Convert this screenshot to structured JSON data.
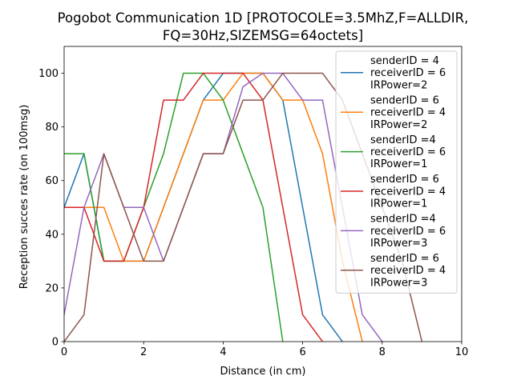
{
  "chart_data": {
    "type": "line",
    "title_lines": [
      "Pogobot Communication 1D [PROTOCOLE=3.5MhZ,F=ALLDIR,",
      "FQ=30Hz,SIZEMSG=64octets]"
    ],
    "xlabel": "Distance (in cm)",
    "ylabel": "Reception succes rate (on 100msg)",
    "xlim": [
      0,
      10
    ],
    "ylim": [
      0,
      110
    ],
    "xticks": [
      0,
      2,
      4,
      6,
      8,
      10
    ],
    "yticks": [
      0,
      20,
      40,
      60,
      80,
      100
    ],
    "legend_position": "top-right",
    "grid": false,
    "series": [
      {
        "name_lines": [
          "senderID = 4",
          "receiverID = 6",
          "IRPower=2"
        ],
        "color": "#1f77b4",
        "x": [
          0,
          0.5,
          1,
          1.5,
          2,
          2.5,
          3,
          3.5,
          4,
          4.5,
          5,
          5.5,
          6,
          6.5,
          7
        ],
        "y": [
          50,
          70,
          30,
          30,
          30,
          50,
          70,
          90,
          100,
          100,
          100,
          90,
          50,
          10,
          0
        ]
      },
      {
        "name_lines": [
          "senderID = 6",
          "receiverID = 4",
          "IRPower=2"
        ],
        "color": "#ff7f0e",
        "x": [
          0,
          0.5,
          1,
          1.5,
          2,
          2.5,
          3,
          3.5,
          4,
          4.5,
          5,
          5.5,
          6,
          6.5,
          7,
          7.5
        ],
        "y": [
          50,
          50,
          50,
          30,
          30,
          50,
          70,
          90,
          90,
          100,
          100,
          90,
          90,
          70,
          30,
          0
        ]
      },
      {
        "name_lines": [
          "senderID =4",
          "receiverID = 6",
          "IRPower=1"
        ],
        "color": "#2ca02c",
        "x": [
          0,
          0.5,
          1,
          1.5,
          2,
          2.5,
          3,
          3.5,
          4,
          4.5,
          5,
          5.5
        ],
        "y": [
          70,
          70,
          30,
          30,
          50,
          70,
          100,
          100,
          90,
          70,
          50,
          0
        ]
      },
      {
        "name_lines": [
          "senderID = 6",
          "receiverID = 4",
          "IRPower=1"
        ],
        "color": "#d62728",
        "x": [
          0,
          0.5,
          1,
          1.5,
          2,
          2.5,
          3,
          3.5,
          4,
          4.5,
          5,
          5.5,
          6,
          6.5
        ],
        "y": [
          50,
          50,
          30,
          30,
          50,
          90,
          90,
          100,
          100,
          100,
          90,
          50,
          10,
          0
        ]
      },
      {
        "name_lines": [
          "senderID =4",
          "receiverID = 6",
          "IRPower=3"
        ],
        "color": "#9467bd",
        "x": [
          0,
          0.5,
          1,
          1.5,
          2,
          2.5,
          3,
          3.5,
          4,
          4.5,
          5,
          5.5,
          6,
          6.5,
          7,
          7.5,
          8
        ],
        "y": [
          10,
          50,
          70,
          50,
          50,
          30,
          50,
          70,
          70,
          95,
          100,
          100,
          90,
          90,
          50,
          10,
          0
        ]
      },
      {
        "name_lines": [
          "senderID = 6",
          "receiverID = 4",
          "IRPower=3"
        ],
        "color": "#8c564b",
        "x": [
          0,
          0.5,
          1,
          1.5,
          2,
          2.5,
          3,
          3.5,
          4,
          4.5,
          5,
          5.5,
          6,
          6.5,
          7,
          7.5,
          8,
          8.5,
          9
        ],
        "y": [
          0,
          10,
          70,
          50,
          30,
          30,
          50,
          70,
          70,
          90,
          90,
          100,
          100,
          100,
          90,
          70,
          50,
          30,
          0
        ]
      }
    ]
  }
}
